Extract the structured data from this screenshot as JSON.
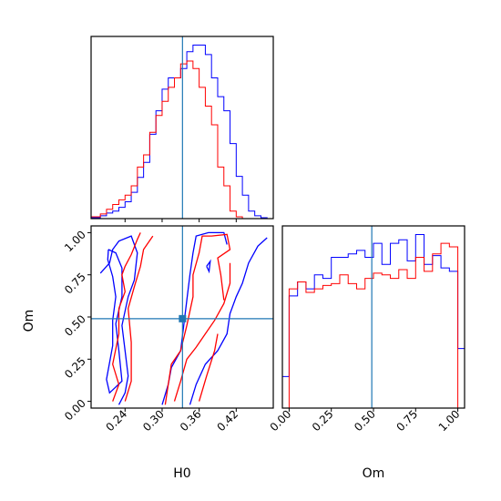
{
  "chart_data": {
    "type": "corner",
    "parameters": [
      "H0",
      "Om"
    ],
    "truths": {
      "H0": 0.333,
      "Om": 0.49
    },
    "colors": {
      "blue": "#0000ff",
      "red": "#ff0000",
      "truth": "#1f77b4"
    },
    "panels": [
      {
        "id": "h0-hist",
        "type": "step-histogram",
        "xlim": [
          0.185,
          0.48
        ],
        "xticks": [
          0.24,
          0.3,
          0.36,
          0.42
        ],
        "tick_labels_shown": false,
        "series": [
          {
            "color": "#0000ff",
            "edges": [
              0.185,
              0.2,
              0.21,
              0.22,
              0.23,
              0.24,
              0.25,
              0.26,
              0.27,
              0.28,
              0.29,
              0.3,
              0.31,
              0.32,
              0.33,
              0.34,
              0.35,
              0.36,
              0.37,
              0.38,
              0.39,
              0.4,
              0.41,
              0.42,
              0.43,
              0.44,
              0.45,
              0.46,
              0.47
            ],
            "counts": [
              1,
              3,
              6,
              8,
              12,
              18,
              28,
              44,
              60,
              90,
              115,
              138,
              150,
              150,
              160,
              178,
              185,
              185,
              175,
              150,
              130,
              115,
              80,
              45,
              25,
              8,
              3,
              1
            ]
          },
          {
            "color": "#ff0000",
            "edges": [
              0.185,
              0.2,
              0.21,
              0.22,
              0.23,
              0.24,
              0.25,
              0.26,
              0.27,
              0.28,
              0.29,
              0.3,
              0.31,
              0.32,
              0.33,
              0.34,
              0.35,
              0.36,
              0.37,
              0.38,
              0.39,
              0.4,
              0.41,
              0.42,
              0.43,
              0.44,
              0.45,
              0.46,
              0.47
            ],
            "counts": [
              2,
              5,
              10,
              15,
              20,
              25,
              35,
              55,
              68,
              92,
              110,
              125,
              140,
              150,
              165,
              168,
              160,
              140,
              120,
              100,
              55,
              35,
              8,
              2,
              0,
              0,
              0,
              0
            ]
          }
        ]
      },
      {
        "id": "om-hist",
        "type": "step-histogram",
        "xlim": [
          -0.04,
          1.04
        ],
        "xticks": [
          0.0,
          0.25,
          0.5,
          0.75,
          1.0
        ],
        "xtick_labels": [
          "0.00",
          "0.25",
          "0.50",
          "0.75",
          "1.00"
        ],
        "xlabel": "Om",
        "series": [
          {
            "color": "#0000ff",
            "edges": [
              -0.04,
              0.0,
              0.05,
              0.1,
              0.15,
              0.2,
              0.25,
              0.3,
              0.35,
              0.4,
              0.45,
              0.5,
              0.55,
              0.6,
              0.65,
              0.7,
              0.75,
              0.8,
              0.85,
              0.9,
              0.95,
              1.0,
              1.04
            ],
            "counts": [
              0.18,
              0.64,
              0.72,
              0.68,
              0.76,
              0.74,
              0.86,
              0.86,
              0.88,
              0.9,
              0.86,
              0.94,
              0.82,
              0.94,
              0.96,
              0.84,
              0.99,
              0.82,
              0.87,
              0.8,
              0.78,
              0.34
            ]
          },
          {
            "color": "#ff0000",
            "edges": [
              0.0,
              0.05,
              0.1,
              0.15,
              0.2,
              0.25,
              0.3,
              0.35,
              0.4,
              0.45,
              0.5,
              0.55,
              0.6,
              0.65,
              0.7,
              0.75,
              0.8,
              0.85,
              0.9,
              0.95,
              1.0
            ],
            "counts": [
              0.68,
              0.72,
              0.66,
              0.68,
              0.7,
              0.71,
              0.76,
              0.71,
              0.68,
              0.74,
              0.77,
              0.76,
              0.74,
              0.79,
              0.74,
              0.86,
              0.78,
              0.88,
              0.94,
              0.92
            ]
          }
        ]
      },
      {
        "id": "joint",
        "type": "contour",
        "xlim": [
          0.185,
          0.48
        ],
        "ylim": [
          -0.04,
          1.04
        ],
        "xticks": [
          0.24,
          0.3,
          0.36,
          0.42
        ],
        "xtick_labels": [
          "0.24",
          "0.30",
          "0.36",
          "0.42"
        ],
        "yticks": [
          0.0,
          0.25,
          0.5,
          0.75,
          1.0
        ],
        "ytick_labels": [
          "0.00",
          "0.25",
          "0.50",
          "0.75",
          "1.00"
        ],
        "xlabel": "H0",
        "ylabel": "Om",
        "contours": [
          {
            "color": "#0000ff",
            "points": [
              [
                0.2,
                0.76
              ],
              [
                0.215,
                0.82
              ],
              [
                0.22,
                0.9
              ],
              [
                0.23,
                0.95
              ],
              [
                0.25,
                0.98
              ],
              [
                0.26,
                0.88
              ],
              [
                0.255,
                0.72
              ],
              [
                0.245,
                0.62
              ],
              [
                0.235,
                0.45
              ],
              [
                0.24,
                0.3
              ],
              [
                0.245,
                0.15
              ],
              [
                0.24,
                0.05
              ],
              [
                0.23,
                -0.02
              ]
            ]
          },
          {
            "color": "#0000ff",
            "points": [
              [
                0.213,
                0.9
              ],
              [
                0.225,
                0.88
              ],
              [
                0.235,
                0.79
              ],
              [
                0.235,
                0.62
              ],
              [
                0.225,
                0.46
              ],
              [
                0.23,
                0.3
              ],
              [
                0.235,
                0.12
              ],
              [
                0.215,
                0.05
              ],
              [
                0.21,
                0.13
              ],
              [
                0.22,
                0.33
              ],
              [
                0.22,
                0.48
              ],
              [
                0.225,
                0.62
              ],
              [
                0.22,
                0.74
              ],
              [
                0.212,
                0.84
              ],
              [
                0.213,
                0.9
              ]
            ]
          },
          {
            "color": "#0000ff",
            "points": [
              [
                0.3,
                -0.02
              ],
              [
                0.31,
                0.1
              ],
              [
                0.315,
                0.2
              ],
              [
                0.33,
                0.3
              ],
              [
                0.335,
                0.45
              ],
              [
                0.34,
                0.6
              ],
              [
                0.345,
                0.75
              ],
              [
                0.35,
                0.88
              ],
              [
                0.355,
                0.98
              ],
              [
                0.375,
                1.0
              ],
              [
                0.4,
                1.0
              ],
              [
                0.405,
                0.93
              ]
            ]
          },
          {
            "color": "#0000ff",
            "points": [
              [
                0.345,
                -0.02
              ],
              [
                0.355,
                0.1
              ],
              [
                0.37,
                0.22
              ],
              [
                0.39,
                0.3
              ],
              [
                0.405,
                0.4
              ],
              [
                0.41,
                0.52
              ],
              [
                0.42,
                0.62
              ],
              [
                0.43,
                0.7
              ],
              [
                0.44,
                0.82
              ],
              [
                0.455,
                0.92
              ],
              [
                0.47,
                0.97
              ]
            ]
          },
          {
            "color": "#0000ff",
            "points": [
              [
                0.372,
                0.8
              ],
              [
                0.378,
                0.83
              ],
              [
                0.376,
                0.77
              ],
              [
                0.372,
                0.8
              ]
            ]
          },
          {
            "color": "#ff0000",
            "points": [
              [
                0.22,
                0.0
              ],
              [
                0.23,
                0.1
              ],
              [
                0.22,
                0.22
              ],
              [
                0.23,
                0.4
              ],
              [
                0.23,
                0.55
              ],
              [
                0.24,
                0.65
              ],
              [
                0.235,
                0.75
              ],
              [
                0.24,
                0.8
              ],
              [
                0.25,
                0.87
              ],
              [
                0.26,
                0.96
              ],
              [
                0.265,
                1.0
              ]
            ]
          },
          {
            "color": "#ff0000",
            "points": [
              [
                0.24,
                0.0
              ],
              [
                0.25,
                0.12
              ],
              [
                0.25,
                0.35
              ],
              [
                0.245,
                0.55
              ],
              [
                0.255,
                0.68
              ],
              [
                0.265,
                0.8
              ],
              [
                0.27,
                0.9
              ],
              [
                0.285,
                0.98
              ]
            ]
          },
          {
            "color": "#ff0000",
            "points": [
              [
                0.305,
                -0.02
              ],
              [
                0.31,
                0.1
              ],
              [
                0.315,
                0.22
              ],
              [
                0.33,
                0.3
              ],
              [
                0.34,
                0.45
              ],
              [
                0.35,
                0.62
              ],
              [
                0.35,
                0.75
              ],
              [
                0.36,
                0.88
              ],
              [
                0.365,
                0.98
              ],
              [
                0.38,
                0.98
              ],
              [
                0.405,
                0.99
              ],
              [
                0.41,
                0.9
              ],
              [
                0.39,
                0.85
              ],
              [
                0.395,
                0.75
              ],
              [
                0.4,
                0.6
              ]
            ]
          },
          {
            "color": "#ff0000",
            "points": [
              [
                0.32,
                0.0
              ],
              [
                0.33,
                0.12
              ],
              [
                0.34,
                0.25
              ],
              [
                0.355,
                0.32
              ],
              [
                0.37,
                0.4
              ],
              [
                0.385,
                0.48
              ],
              [
                0.4,
                0.58
              ],
              [
                0.41,
                0.7
              ],
              [
                0.41,
                0.82
              ]
            ]
          },
          {
            "color": "#ff0000",
            "points": [
              [
                0.36,
                0.0
              ],
              [
                0.372,
                0.15
              ],
              [
                0.385,
                0.3
              ],
              [
                0.39,
                0.4
              ]
            ]
          }
        ]
      }
    ]
  }
}
